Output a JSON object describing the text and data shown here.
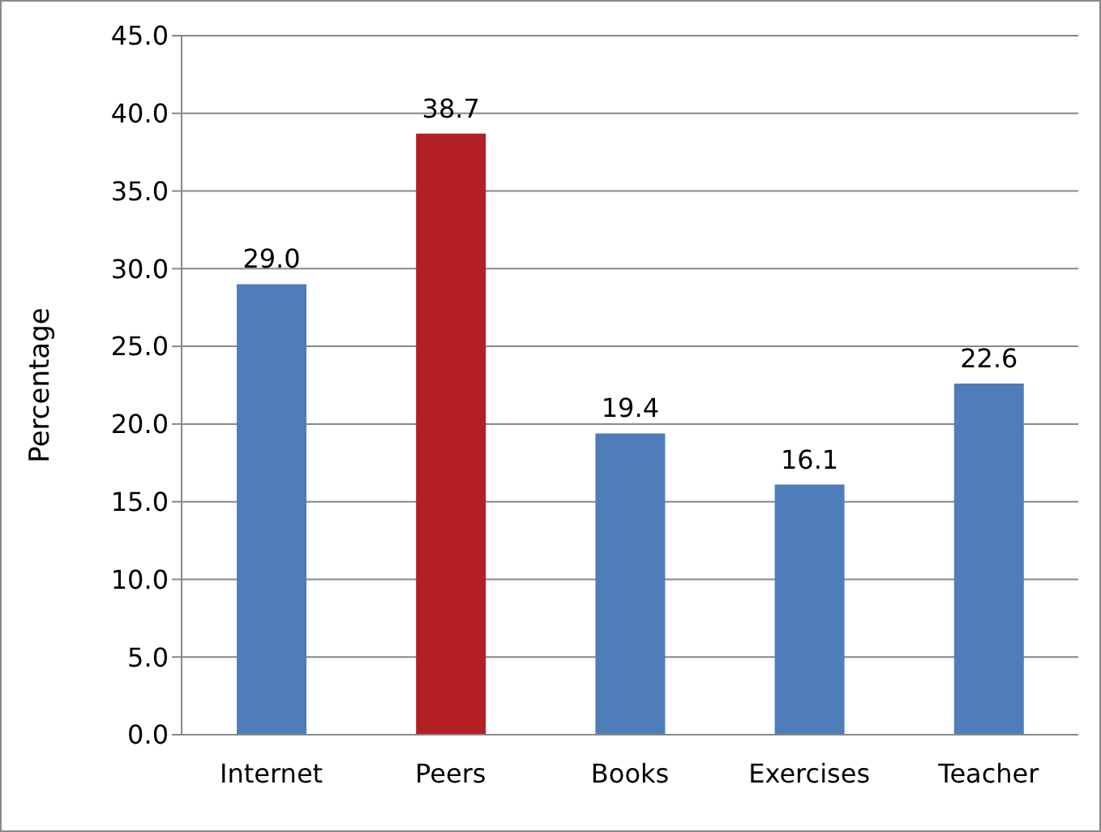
{
  "chart_data": {
    "type": "bar",
    "ylabel": "Percentage",
    "categories": [
      "Internet",
      "Peers",
      "Books",
      "Exercises",
      "Teacher"
    ],
    "values": [
      29.0,
      38.7,
      19.4,
      16.1,
      22.6
    ],
    "colors": [
      "#4f7db9",
      "#b31f24",
      "#4f7db9",
      "#4f7db9",
      "#4f7db9"
    ],
    "value_labels": [
      "29.0",
      "38.7",
      "19.4",
      "16.1",
      "22.6"
    ],
    "ylim": [
      0,
      45
    ],
    "yticks": [
      {
        "value": 0,
        "label": "0.0"
      },
      {
        "value": 5,
        "label": "5.0"
      },
      {
        "value": 10,
        "label": "10.0"
      },
      {
        "value": 15,
        "label": "15.0"
      },
      {
        "value": 20,
        "label": "20.0"
      },
      {
        "value": 25,
        "label": "25.0"
      },
      {
        "value": 30,
        "label": "30.0"
      },
      {
        "value": 35,
        "label": "35.0"
      },
      {
        "value": 40,
        "label": "40.0"
      },
      {
        "value": 45,
        "label": "45.0"
      }
    ],
    "grid": "y",
    "legend": false
  }
}
